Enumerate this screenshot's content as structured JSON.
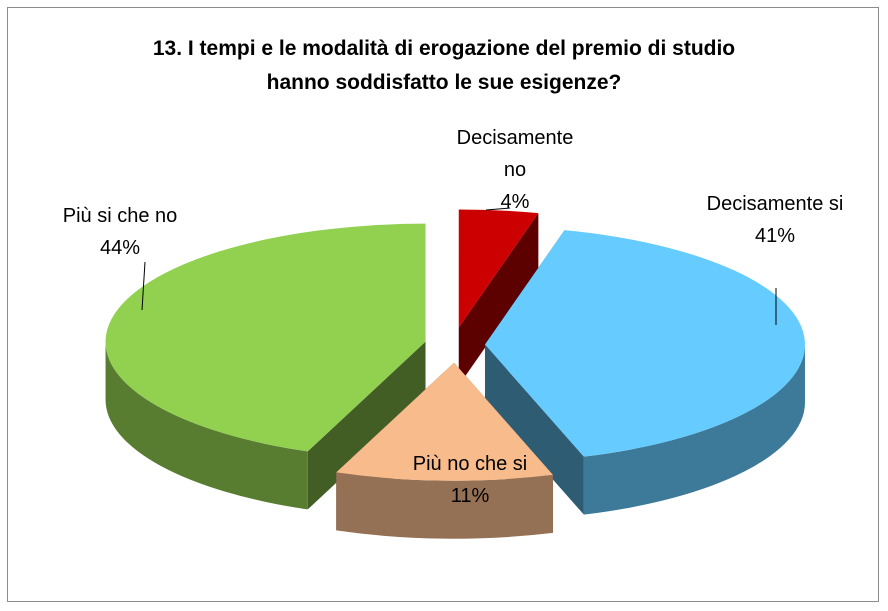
{
  "chart_data": {
    "type": "pie",
    "title": "13. I tempi e le modalità di erogazione del premio di studio hanno soddisfatto le sue esigenze?",
    "categories": [
      "Decisamente no",
      "Decisamente si",
      "Più no che si",
      "Più si che no"
    ],
    "values": [
      4,
      41,
      11,
      44
    ],
    "value_labels": [
      "4%",
      "41%",
      "11%",
      "44%"
    ],
    "colors": [
      "#cc0000",
      "#66ccff",
      "#f7bb8c",
      "#92d050"
    ]
  }
}
